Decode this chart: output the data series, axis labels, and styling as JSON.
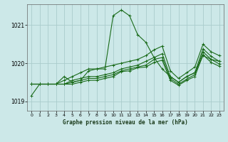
{
  "background_color": "#cce8e8",
  "grid_color": "#aacccc",
  "line_color": "#1a6b1a",
  "xlabel": "Graphe pression niveau de la mer (hPa)",
  "x_ticks": [
    0,
    1,
    2,
    3,
    4,
    5,
    6,
    7,
    8,
    9,
    10,
    11,
    12,
    13,
    14,
    15,
    16,
    17,
    18,
    19,
    20,
    21,
    22,
    23
  ],
  "y_ticks": [
    1019,
    1020,
    1021
  ],
  "ylim": [
    1018.75,
    1021.55
  ],
  "xlim": [
    -0.5,
    23.5
  ],
  "series": [
    [
      1019.15,
      1019.45,
      1019.45,
      1019.45,
      1019.65,
      1019.5,
      1019.55,
      1019.8,
      1019.85,
      1019.85,
      1021.25,
      1021.4,
      1021.25,
      1020.75,
      1020.55,
      1020.15,
      1019.85,
      1019.65,
      1019.5,
      1019.65,
      1019.75,
      1020.2,
      1020.1,
      1020.05
    ],
    [
      1019.45,
      1019.45,
      1019.45,
      1019.45,
      1019.55,
      1019.65,
      1019.75,
      1019.85,
      1019.85,
      1019.9,
      1019.95,
      1020.0,
      1020.05,
      1020.1,
      1020.2,
      1020.35,
      1020.45,
      1019.8,
      1019.6,
      1019.75,
      1019.9,
      1020.5,
      1020.3,
      1020.2
    ],
    [
      1019.45,
      1019.45,
      1019.45,
      1019.45,
      1019.45,
      1019.55,
      1019.6,
      1019.65,
      1019.65,
      1019.7,
      1019.75,
      1019.85,
      1019.9,
      1019.95,
      1020.05,
      1020.15,
      1020.25,
      1019.65,
      1019.5,
      1019.65,
      1019.75,
      1020.38,
      1020.18,
      1020.05
    ],
    [
      1019.45,
      1019.45,
      1019.45,
      1019.45,
      1019.45,
      1019.5,
      1019.55,
      1019.6,
      1019.6,
      1019.65,
      1019.7,
      1019.8,
      1019.85,
      1019.9,
      1019.95,
      1020.1,
      1020.15,
      1019.6,
      1019.45,
      1019.58,
      1019.7,
      1020.3,
      1020.1,
      1019.98
    ],
    [
      1019.45,
      1019.45,
      1019.45,
      1019.45,
      1019.45,
      1019.45,
      1019.5,
      1019.55,
      1019.55,
      1019.6,
      1019.65,
      1019.78,
      1019.8,
      1019.88,
      1019.9,
      1020.02,
      1020.08,
      1019.55,
      1019.42,
      1019.55,
      1019.65,
      1020.22,
      1020.02,
      1019.92
    ]
  ]
}
